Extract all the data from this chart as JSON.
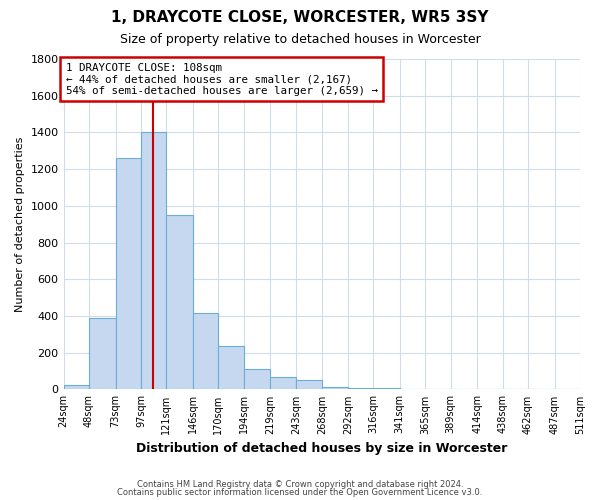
{
  "title": "1, DRAYCOTE CLOSE, WORCESTER, WR5 3SY",
  "subtitle": "Size of property relative to detached houses in Worcester",
  "xlabel": "Distribution of detached houses by size in Worcester",
  "ylabel": "Number of detached properties",
  "bin_edges": [
    24,
    48,
    73,
    97,
    121,
    146,
    170,
    194,
    219,
    243,
    268,
    292,
    316,
    341,
    365,
    389,
    414,
    438,
    462,
    487,
    511
  ],
  "bar_heights": [
    25,
    390,
    1260,
    1400,
    950,
    415,
    235,
    110,
    65,
    50,
    15,
    10,
    10,
    5,
    5,
    5,
    0,
    0,
    0,
    5
  ],
  "bar_color": "#c5d8f0",
  "bar_edge_color": "#6aaed6",
  "property_line_x": 108,
  "property_line_color": "#cc0000",
  "annotation_title": "1 DRAYCOTE CLOSE: 108sqm",
  "annotation_line1": "← 44% of detached houses are smaller (2,167)",
  "annotation_line2": "54% of semi-detached houses are larger (2,659) →",
  "annotation_box_color": "#cc0000",
  "ylim": [
    0,
    1800
  ],
  "yticks": [
    0,
    200,
    400,
    600,
    800,
    1000,
    1200,
    1400,
    1600,
    1800
  ],
  "footer_line1": "Contains HM Land Registry data © Crown copyright and database right 2024.",
  "footer_line2": "Contains public sector information licensed under the Open Government Licence v3.0.",
  "background_color": "#ffffff",
  "grid_color": "#d0dcea"
}
